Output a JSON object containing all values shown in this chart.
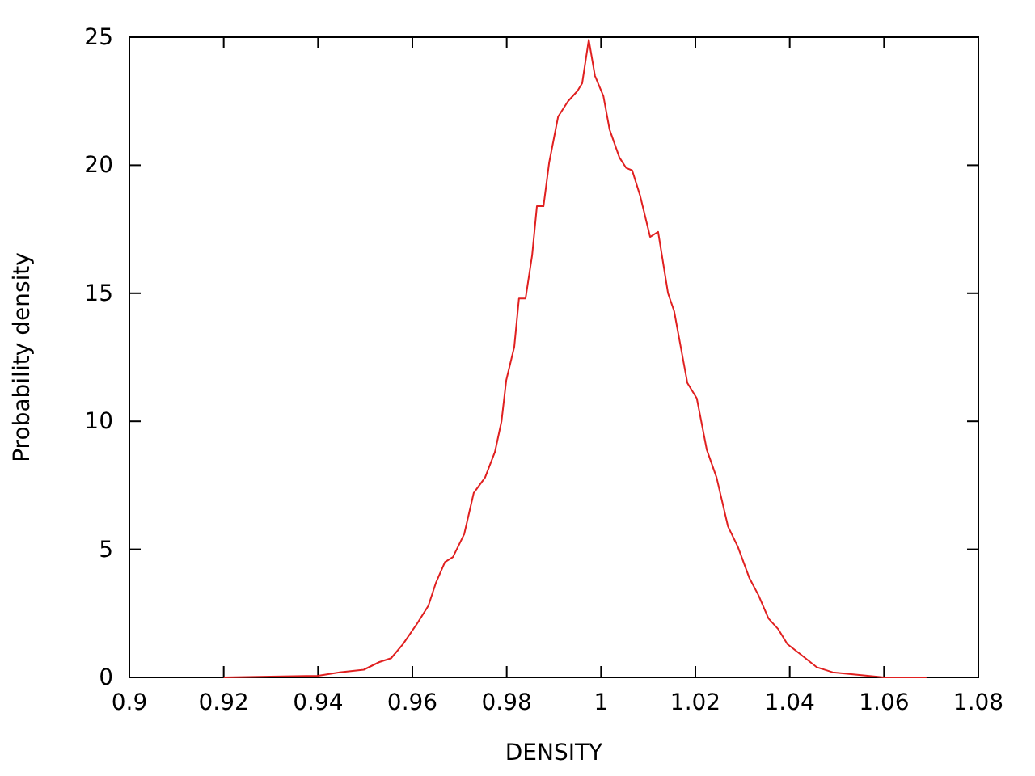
{
  "chart_data": {
    "type": "line",
    "xlabel": "DENSITY",
    "ylabel": "Probability density",
    "xlim": [
      0.9,
      1.08
    ],
    "xticks": [
      0.9,
      0.92,
      0.94,
      0.96,
      0.98,
      1,
      1.02,
      1.04,
      1.06,
      1.08
    ],
    "ylim": [
      0,
      25
    ],
    "yticks": [
      0,
      5,
      10,
      15,
      20,
      25
    ],
    "grid": false,
    "marker": "none",
    "line_style": "solid",
    "series": [
      {
        "color": "#e02020",
        "x": [
          0.92,
          0.94,
          0.9446,
          0.9497,
          0.953,
          0.9555,
          0.958,
          0.961,
          0.9634,
          0.965,
          0.9669,
          0.9686,
          0.971,
          0.973,
          0.9754,
          0.9775,
          0.9789,
          0.9799,
          0.9816,
          0.9826,
          0.984,
          0.9854,
          0.9864,
          0.9878,
          0.989,
          0.9909,
          0.993,
          0.995,
          0.996,
          0.9974,
          0.9987,
          1.0005,
          1.0018,
          1.0039,
          1.0053,
          1.0066,
          1.0083,
          1.0104,
          1.0121,
          1.0142,
          1.0155,
          1.0183,
          1.0203,
          1.0224,
          1.0245,
          1.0269,
          1.029,
          1.0314,
          1.0334,
          1.0355,
          1.0375,
          1.0395,
          1.0423,
          1.0457,
          1.0491,
          1.06,
          1.069
        ],
        "values": [
          0,
          0.06,
          0.2,
          0.3,
          0.6,
          0.75,
          1.3,
          2.1,
          2.8,
          3.7,
          4.5,
          4.7,
          5.6,
          7.2,
          7.8,
          8.8,
          10.0,
          11.6,
          12.9,
          14.8,
          14.8,
          16.5,
          18.4,
          18.4,
          20.1,
          21.9,
          22.5,
          22.9,
          23.2,
          24.9,
          23.5,
          22.7,
          21.4,
          20.3,
          19.9,
          19.8,
          18.8,
          17.2,
          17.4,
          15.0,
          14.3,
          11.5,
          10.9,
          8.9,
          7.8,
          5.9,
          5.1,
          3.9,
          3.2,
          2.3,
          1.9,
          1.3,
          0.9,
          0.4,
          0.2,
          0,
          0
        ]
      }
    ]
  }
}
